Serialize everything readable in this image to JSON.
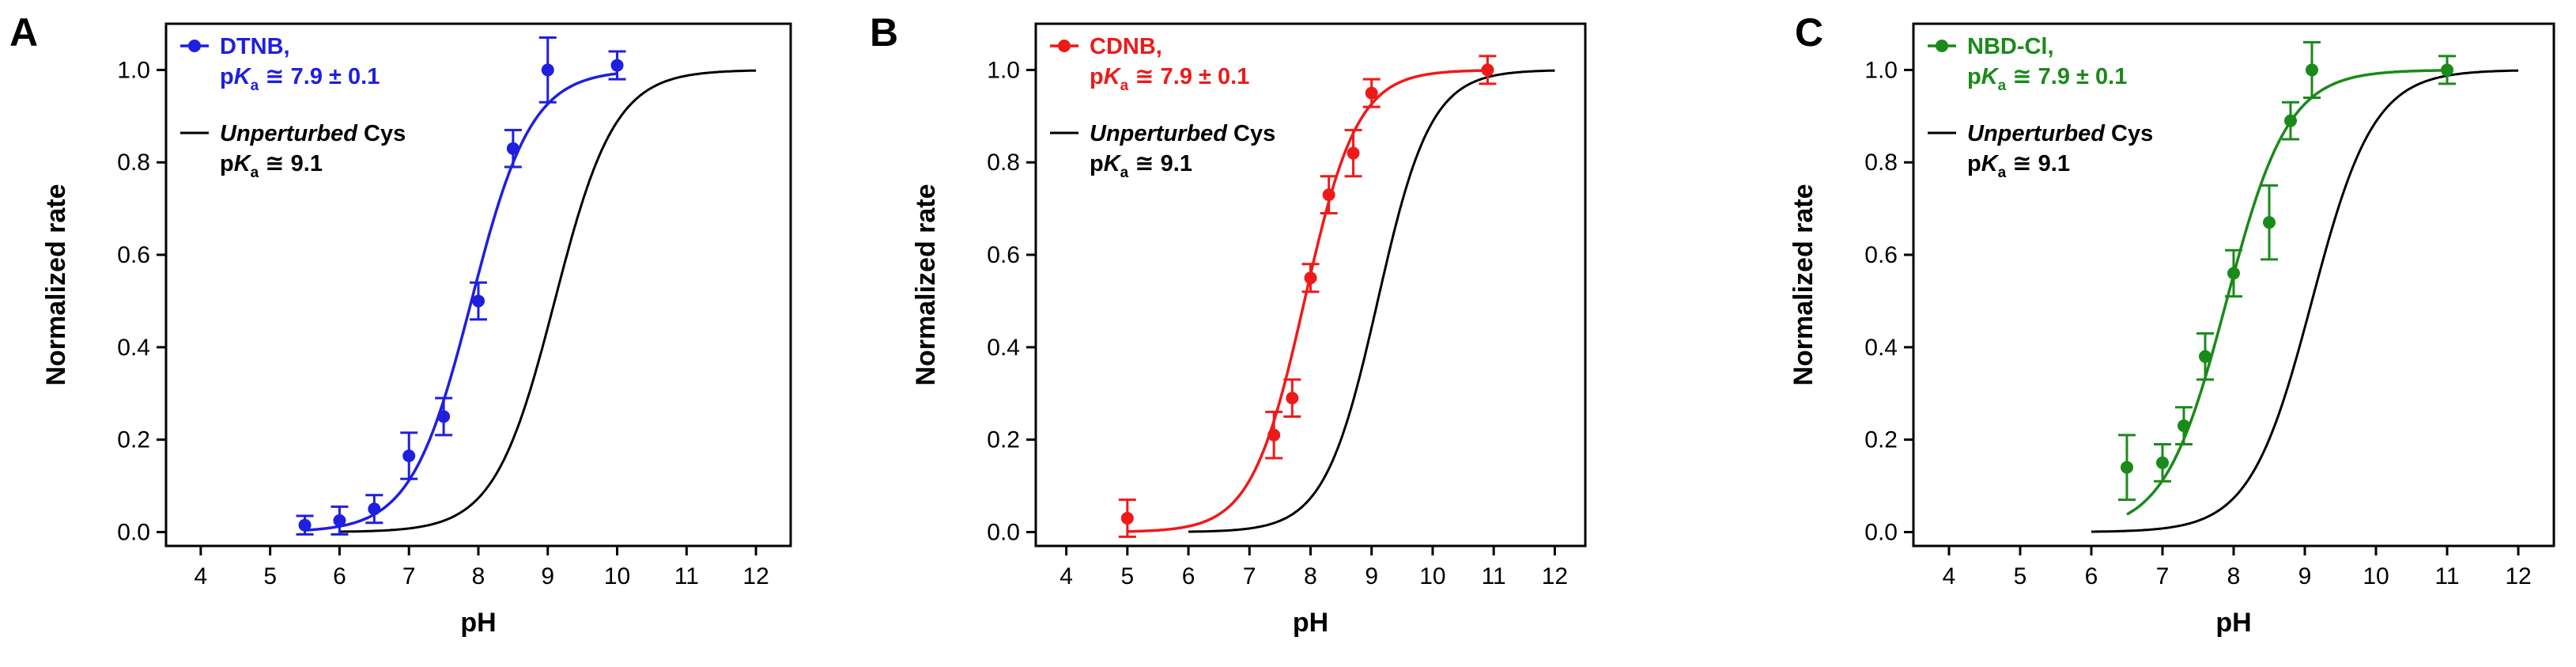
{
  "chart_data": [
    {
      "type": "scatter",
      "panel": "A",
      "xlabel": "pH",
      "ylabel": "Normalized rate",
      "xlim": [
        3.5,
        12.5
      ],
      "ylim": [
        -0.03,
        1.1
      ],
      "xticks": [
        "4",
        "5",
        "6",
        "7",
        "8",
        "9",
        "10",
        "11",
        "12"
      ],
      "yticks": [
        "0.0",
        "0.2",
        "0.4",
        "0.6",
        "0.8",
        "1.0"
      ],
      "color": "#1f1fe0",
      "series": [
        {
          "name": "DTNB",
          "legend_label": "DTNB,",
          "legend_pka_value": " ≅ 7.9 ± 0.1",
          "x": [
            5.5,
            6.0,
            6.5,
            7.0,
            7.5,
            8.0,
            8.5,
            9.0,
            10.0
          ],
          "y": [
            0.015,
            0.025,
            0.05,
            0.165,
            0.25,
            0.5,
            0.83,
            1.0,
            1.01
          ],
          "err": [
            0.02,
            0.03,
            0.03,
            0.05,
            0.04,
            0.04,
            0.04,
            0.07,
            0.03
          ],
          "fit": {
            "pka": 7.9,
            "x_start": 5.5,
            "x_end": 10.0
          }
        },
        {
          "name": "Unperturbed Cys",
          "legend_label_italic": "Unperturbed",
          "legend_label_rest": " Cys",
          "legend_pka_value": " ≅ 9.1",
          "color": "#000000",
          "curve": {
            "pka": 9.1,
            "x_start": 6.0,
            "x_end": 12.0
          }
        }
      ]
    },
    {
      "type": "scatter",
      "panel": "B",
      "xlabel": "pH",
      "ylabel": "Normalized rate",
      "xlim": [
        3.5,
        12.5
      ],
      "ylim": [
        -0.03,
        1.1
      ],
      "xticks": [
        "4",
        "5",
        "6",
        "7",
        "8",
        "9",
        "10",
        "11",
        "12"
      ],
      "yticks": [
        "0.0",
        "0.2",
        "0.4",
        "0.6",
        "0.8",
        "1.0"
      ],
      "color": "#ee1a1a",
      "series": [
        {
          "name": "CDNB",
          "legend_label": "CDNB,",
          "legend_pka_value": " ≅ 7.9 ± 0.1",
          "x": [
            5.0,
            7.4,
            7.7,
            8.0,
            8.3,
            8.7,
            9.0,
            10.9
          ],
          "y": [
            0.03,
            0.21,
            0.29,
            0.55,
            0.73,
            0.82,
            0.95,
            1.0
          ],
          "err": [
            0.04,
            0.05,
            0.04,
            0.03,
            0.04,
            0.05,
            0.03,
            0.03
          ],
          "fit": {
            "pka": 7.9,
            "x_start": 5.0,
            "x_end": 11.0
          }
        },
        {
          "name": "Unperturbed Cys",
          "legend_label_italic": "Unperturbed",
          "legend_label_rest": " Cys",
          "legend_pka_value": " ≅ 9.1",
          "color": "#000000",
          "curve": {
            "pka": 9.1,
            "x_start": 6.0,
            "x_end": 12.0
          }
        }
      ]
    },
    {
      "type": "scatter",
      "panel": "C",
      "xlabel": "pH",
      "ylabel": "Normalized rate",
      "xlim": [
        3.5,
        12.5
      ],
      "ylim": [
        -0.03,
        1.1
      ],
      "xticks": [
        "4",
        "5",
        "6",
        "7",
        "8",
        "9",
        "10",
        "11",
        "12"
      ],
      "yticks": [
        "0.0",
        "0.2",
        "0.4",
        "0.6",
        "0.8",
        "1.0"
      ],
      "color": "#1a8a1a",
      "series": [
        {
          "name": "NBD-Cl",
          "legend_label": "NBD-Cl,",
          "legend_pka_value": " ≅ 7.9 ± 0.1",
          "x": [
            6.5,
            7.0,
            7.3,
            7.6,
            8.0,
            8.5,
            8.8,
            9.1,
            11.0
          ],
          "y": [
            0.14,
            0.15,
            0.23,
            0.38,
            0.56,
            0.67,
            0.89,
            1.0,
            1.0
          ],
          "err": [
            0.07,
            0.04,
            0.04,
            0.05,
            0.05,
            0.08,
            0.04,
            0.06,
            0.03
          ],
          "fit": {
            "pka": 7.9,
            "x_start": 6.5,
            "x_end": 11.0
          }
        },
        {
          "name": "Unperturbed Cys",
          "legend_label_italic": "Unperturbed",
          "legend_label_rest": " Cys",
          "legend_pka_value": " ≅ 9.1",
          "color": "#000000",
          "curve": {
            "pka": 9.1,
            "x_start": 6.0,
            "x_end": 12.0
          }
        }
      ]
    }
  ],
  "legend_pka_prefix": "p",
  "legend_pka_k": "K",
  "legend_pka_sub": "a"
}
